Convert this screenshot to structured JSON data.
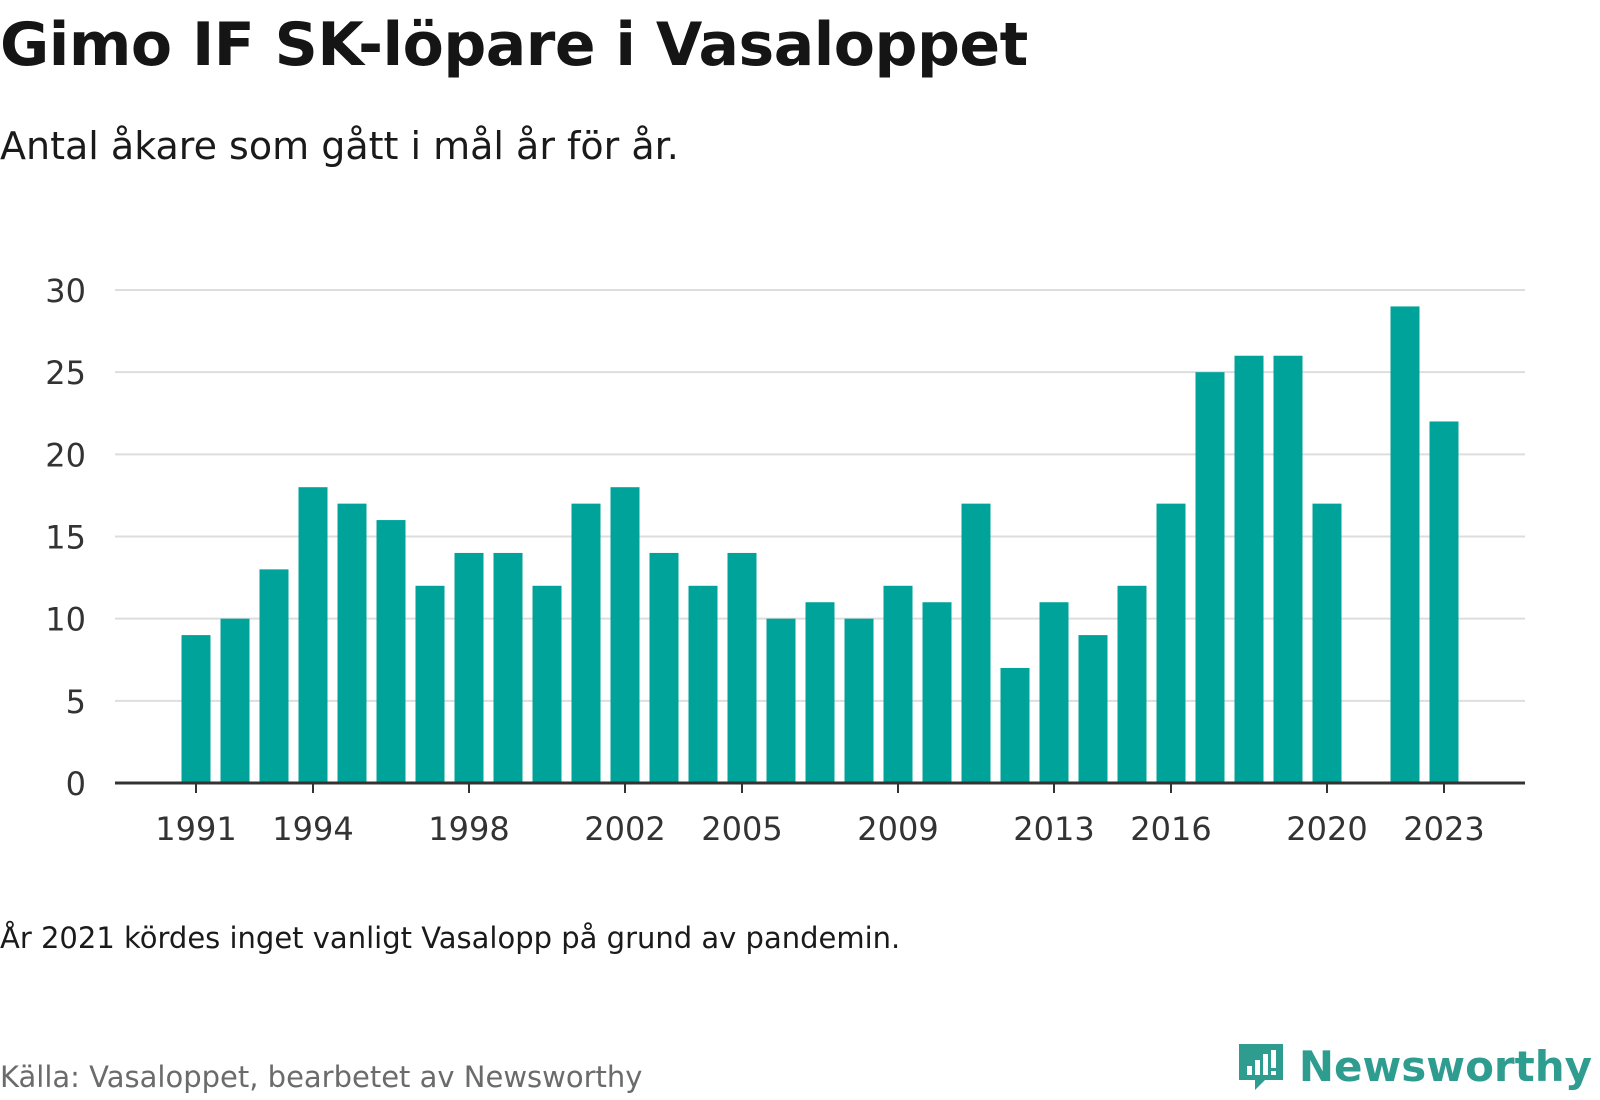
{
  "title": "Gimo IF SK-löpare i Vasaloppet",
  "subtitle": "Antal åkare som gått i mål år för år.",
  "note": "År 2021 kördes inget vanligt Vasalopp på grund av pandemin.",
  "source": "Källa: Vasaloppet, bearbetet av Newsworthy",
  "brand": {
    "name": "Newsworthy",
    "icon": "newsworthy-logo-icon"
  },
  "colors": {
    "bar": "#00a39a",
    "grid": "#dddddd",
    "axis": "#333333",
    "brand": "#2e9c8f"
  },
  "chart_data": {
    "type": "bar",
    "title": "Gimo IF SK-löpare i Vasaloppet",
    "subtitle": "Antal åkare som gått i mål år för år.",
    "xlabel": "",
    "ylabel": "",
    "ylim": [
      0,
      30
    ],
    "yticks": [
      0,
      5,
      10,
      15,
      20,
      25,
      30
    ],
    "xticks": [
      1991,
      1994,
      1998,
      2002,
      2005,
      2009,
      2013,
      2016,
      2020,
      2023
    ],
    "grid": true,
    "categories": [
      1991,
      1992,
      1993,
      1994,
      1995,
      1996,
      1997,
      1998,
      1999,
      2000,
      2001,
      2002,
      2003,
      2004,
      2005,
      2006,
      2007,
      2008,
      2009,
      2010,
      2011,
      2012,
      2013,
      2014,
      2015,
      2016,
      2017,
      2018,
      2019,
      2020,
      2021,
      2022,
      2023
    ],
    "values": [
      9,
      10,
      13,
      18,
      17,
      16,
      12,
      14,
      14,
      12,
      17,
      18,
      14,
      12,
      14,
      10,
      11,
      10,
      12,
      11,
      17,
      7,
      11,
      9,
      12,
      17,
      25,
      26,
      26,
      17,
      null,
      29,
      22
    ]
  }
}
